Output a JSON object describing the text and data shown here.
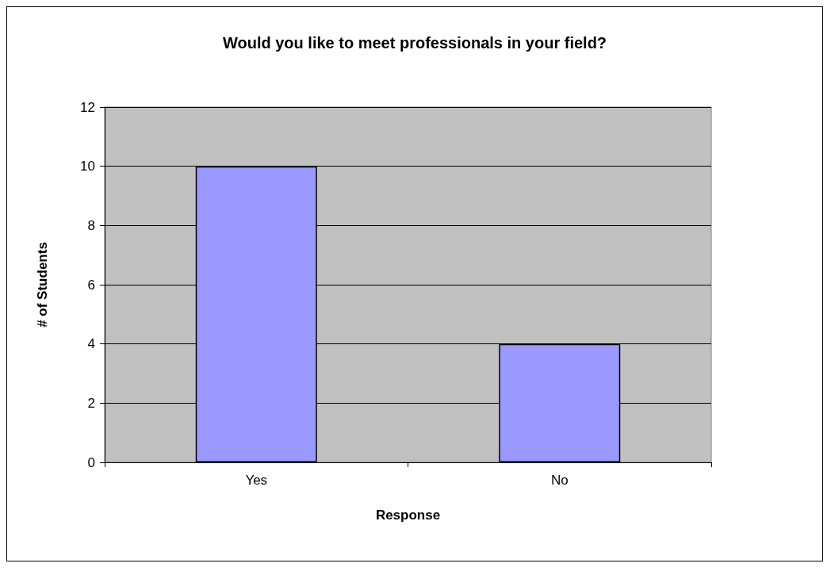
{
  "chart_data": {
    "type": "bar",
    "title": "Would you like to meet professionals in your field?",
    "xlabel": "Response",
    "ylabel": "# of Students",
    "categories": [
      "Yes",
      "No"
    ],
    "series": [
      {
        "color": "#9999ff",
        "values": [
          10,
          4
        ]
      }
    ],
    "ylim": [
      0,
      12
    ],
    "yticks": [
      0,
      2,
      4,
      6,
      8,
      10,
      12
    ],
    "grid": "y"
  }
}
